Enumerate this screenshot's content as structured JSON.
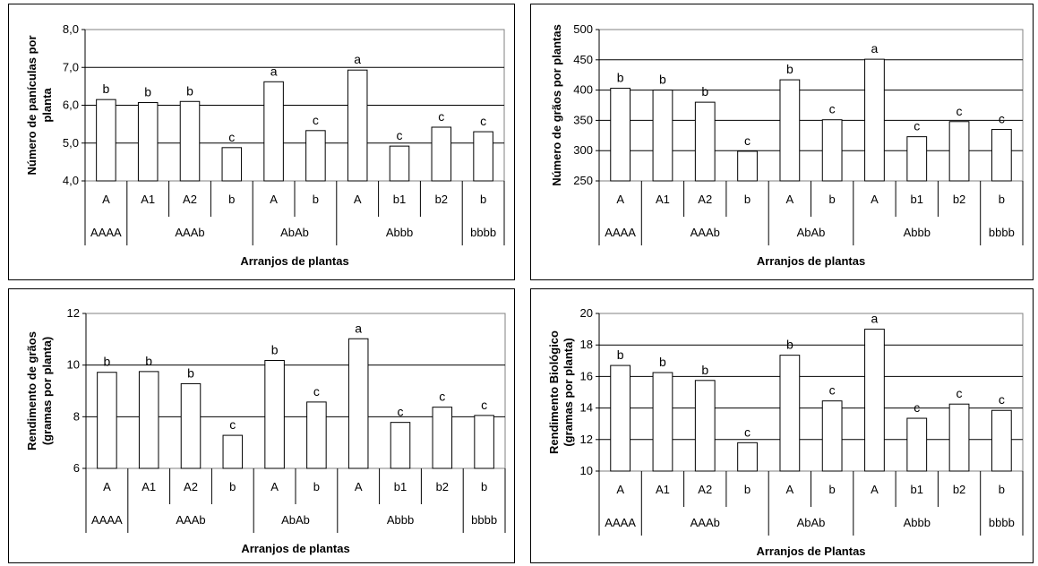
{
  "chart_data": [
    {
      "type": "bar",
      "ylabel": "Número de panículas por planta",
      "xlabel": "Arranjos de plantas",
      "ylim": [
        4.0,
        8.0
      ],
      "yticks": [
        "4,0",
        "5,0",
        "6,0",
        "7,0",
        "8,0"
      ],
      "grid": true,
      "categories": [
        "A",
        "A1",
        "A2",
        "b",
        "A",
        "b",
        "A",
        "b1",
        "b2",
        "b"
      ],
      "values": [
        6.15,
        6.07,
        6.1,
        4.88,
        6.62,
        5.33,
        6.93,
        4.92,
        5.42,
        5.3
      ],
      "data_labels": [
        "b",
        "b",
        "b",
        "c",
        "a",
        "c",
        "a",
        "c",
        "c",
        "c"
      ],
      "groups": [
        {
          "label": "AAAA",
          "span": 1
        },
        {
          "label": "AAAb",
          "span": 3
        },
        {
          "label": "AbAb",
          "span": 2
        },
        {
          "label": "Abbb",
          "span": 3
        },
        {
          "label": "bbbb",
          "span": 1
        }
      ]
    },
    {
      "type": "bar",
      "ylabel": "Número de grãos por plantas",
      "xlabel": "Arranjos de plantas",
      "ylim": [
        250,
        500
      ],
      "yticks": [
        "250",
        "300",
        "350",
        "400",
        "450",
        "500"
      ],
      "grid": true,
      "categories": [
        "A",
        "A1",
        "A2",
        "b",
        "A",
        "b",
        "A",
        "b1",
        "b2",
        "b"
      ],
      "values": [
        403,
        400,
        380,
        299,
        417,
        351,
        451,
        323,
        348,
        335
      ],
      "data_labels": [
        "b",
        "b",
        "b",
        "c",
        "b",
        "c",
        "a",
        "c",
        "c",
        "c"
      ],
      "groups": [
        {
          "label": "AAAA",
          "span": 1
        },
        {
          "label": "AAAb",
          "span": 3
        },
        {
          "label": "AbAb",
          "span": 2
        },
        {
          "label": "Abbb",
          "span": 3
        },
        {
          "label": "bbbb",
          "span": 1
        }
      ]
    },
    {
      "type": "bar",
      "ylabel": "Rendimento de grãos (gramas por planta)",
      "xlabel": "Arranjos de plantas",
      "ylim": [
        6,
        12
      ],
      "yticks": [
        "6",
        "8",
        "10",
        "12"
      ],
      "grid": true,
      "categories": [
        "A",
        "A1",
        "A2",
        "b",
        "A",
        "b",
        "A",
        "b1",
        "b2",
        "b"
      ],
      "values": [
        9.72,
        9.75,
        9.28,
        7.28,
        10.18,
        8.57,
        11.02,
        7.78,
        8.37,
        8.05
      ],
      "data_labels": [
        "b",
        "b",
        "b",
        "c",
        "b",
        "c",
        "a",
        "c",
        "c",
        "c"
      ],
      "groups": [
        {
          "label": "AAAA",
          "span": 1
        },
        {
          "label": "AAAb",
          "span": 3
        },
        {
          "label": "AbAb",
          "span": 2
        },
        {
          "label": "Abbb",
          "span": 3
        },
        {
          "label": "bbbb",
          "span": 1
        }
      ]
    },
    {
      "type": "bar",
      "ylabel": "Rendimento Biológico (gramas por planta)",
      "xlabel": "Arranjos de Plantas",
      "ylim": [
        10,
        20
      ],
      "yticks": [
        "10",
        "12",
        "14",
        "16",
        "18",
        "20"
      ],
      "grid": true,
      "categories": [
        "A",
        "A1",
        "A2",
        "b",
        "A",
        "b",
        "A",
        "b1",
        "b2",
        "b"
      ],
      "values": [
        16.7,
        16.25,
        15.75,
        11.8,
        17.35,
        14.45,
        19.0,
        13.35,
        14.25,
        13.85
      ],
      "data_labels": [
        "b",
        "b",
        "b",
        "c",
        "b",
        "c",
        "a",
        "c",
        "c",
        "c"
      ],
      "groups": [
        {
          "label": "AAAA",
          "span": 1
        },
        {
          "label": "AAAb",
          "span": 3
        },
        {
          "label": "AbAb",
          "span": 2
        },
        {
          "label": "Abbb",
          "span": 3
        },
        {
          "label": "bbbb",
          "span": 1
        }
      ]
    }
  ]
}
